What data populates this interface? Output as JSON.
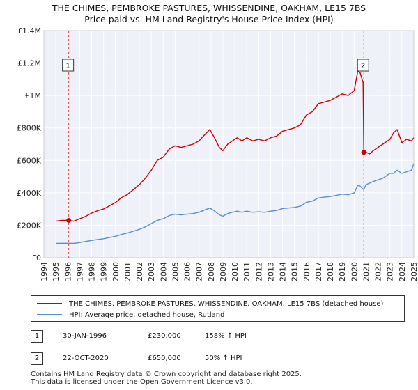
{
  "chart_data": {
    "type": "line",
    "title": "THE CHIMES, PEMBROKE PASTURES, WHISSENDINE, OAKHAM, LE15 7BS",
    "subtitle": "Price paid vs. HM Land Registry's House Price Index (HPI)",
    "xlabel": "",
    "ylabel": "",
    "xlim": [
      1994,
      2025
    ],
    "ylim": [
      0,
      1400000
    ],
    "y_ticks": [
      0,
      200000,
      400000,
      600000,
      800000,
      1000000,
      1200000,
      1400000
    ],
    "y_tick_labels": [
      "£0",
      "£200K",
      "£400K",
      "£600K",
      "£800K",
      "£1M",
      "£1.2M",
      "£1.4M"
    ],
    "x_ticks": [
      1994,
      1995,
      1996,
      1997,
      1998,
      1999,
      2000,
      2001,
      2002,
      2003,
      2004,
      2005,
      2006,
      2007,
      2008,
      2009,
      2010,
      2011,
      2012,
      2013,
      2014,
      2015,
      2016,
      2017,
      2018,
      2019,
      2020,
      2021,
      2022,
      2023,
      2024,
      2025
    ],
    "x_tick_labels": [
      "1994",
      "1995",
      "1996",
      "1997",
      "1998",
      "1999",
      "2000",
      "2001",
      "2002",
      "2003",
      "2004",
      "2005",
      "2006",
      "2007",
      "2008",
      "2009",
      "2010",
      "2011",
      "2012",
      "2013",
      "2014",
      "2015",
      "2016",
      "2017",
      "2018",
      "2019",
      "2020",
      "2021",
      "2022",
      "2023",
      "2024",
      "2025"
    ],
    "grid": true,
    "series": [
      {
        "name": "THE CHIMES, PEMBROKE PASTURES, WHISSENDINE, OAKHAM, LE15 7BS (detached house)",
        "color": "#cc0000",
        "x": [
          1995.0,
          1995.5,
          1996.08,
          1996.5,
          1997.0,
          1997.5,
          1998.0,
          1998.5,
          1999.0,
          1999.5,
          2000.0,
          2000.5,
          2001.0,
          2001.5,
          2002.0,
          2002.5,
          2003.0,
          2003.5,
          2004.0,
          2004.5,
          2005.0,
          2005.5,
          2006.0,
          2006.5,
          2007.0,
          2007.5,
          2007.9,
          2008.3,
          2008.7,
          2009.0,
          2009.4,
          2009.8,
          2010.2,
          2010.6,
          2011.0,
          2011.5,
          2012.0,
          2012.5,
          2013.0,
          2013.5,
          2014.0,
          2014.5,
          2015.0,
          2015.5,
          2016.0,
          2016.5,
          2017.0,
          2017.5,
          2018.0,
          2018.5,
          2019.0,
          2019.5,
          2020.0,
          2020.3,
          2020.5,
          2020.75,
          2020.81,
          2021.0,
          2021.3,
          2021.6,
          2022.0,
          2022.4,
          2022.8,
          2023.0,
          2023.3,
          2023.6,
          2024.0,
          2024.4,
          2024.8,
          2025.0
        ],
        "values": [
          225000,
          230000,
          230000,
          225000,
          240000,
          255000,
          275000,
          290000,
          300000,
          320000,
          340000,
          370000,
          390000,
          420000,
          450000,
          490000,
          540000,
          600000,
          620000,
          670000,
          690000,
          680000,
          690000,
          700000,
          720000,
          760000,
          790000,
          740000,
          680000,
          660000,
          700000,
          720000,
          740000,
          720000,
          740000,
          720000,
          730000,
          720000,
          740000,
          750000,
          780000,
          790000,
          800000,
          820000,
          880000,
          900000,
          950000,
          960000,
          970000,
          990000,
          1010000,
          1000000,
          1030000,
          1150000,
          1140000,
          1080000,
          650000,
          650000,
          640000,
          660000,
          680000,
          700000,
          720000,
          730000,
          770000,
          790000,
          710000,
          730000,
          720000,
          740000
        ]
      },
      {
        "name": "HPI: Average price, detached house, Rutland",
        "color": "#5b8fc9",
        "x": [
          1995.0,
          1995.5,
          1996.0,
          1996.5,
          1997.0,
          1997.5,
          1998.0,
          1998.5,
          1999.0,
          1999.5,
          2000.0,
          2000.5,
          2001.0,
          2001.5,
          2002.0,
          2002.5,
          2003.0,
          2003.5,
          2004.0,
          2004.5,
          2005.0,
          2005.5,
          2006.0,
          2006.5,
          2007.0,
          2007.5,
          2007.9,
          2008.3,
          2008.7,
          2009.0,
          2009.4,
          2009.8,
          2010.2,
          2010.6,
          2011.0,
          2011.5,
          2012.0,
          2012.5,
          2013.0,
          2013.5,
          2014.0,
          2014.5,
          2015.0,
          2015.5,
          2016.0,
          2016.5,
          2017.0,
          2017.5,
          2018.0,
          2018.5,
          2019.0,
          2019.5,
          2020.0,
          2020.3,
          2020.5,
          2020.8,
          2021.0,
          2021.3,
          2021.6,
          2022.0,
          2022.4,
          2022.8,
          2023.0,
          2023.3,
          2023.6,
          2024.0,
          2024.4,
          2024.8,
          2025.0
        ],
        "values": [
          88000,
          89000,
          89000,
          88000,
          93000,
          100000,
          106000,
          112000,
          117000,
          124000,
          132000,
          143000,
          152000,
          163000,
          175000,
          190000,
          210000,
          230000,
          240000,
          260000,
          268000,
          264000,
          268000,
          272000,
          280000,
          295000,
          306000,
          288000,
          264000,
          256000,
          272000,
          280000,
          287000,
          280000,
          287000,
          280000,
          283000,
          280000,
          287000,
          291000,
          303000,
          306000,
          310000,
          318000,
          342000,
          349000,
          368000,
          373000,
          377000,
          384000,
          392000,
          388000,
          400000,
          446000,
          442000,
          420000,
          450000,
          460000,
          470000,
          480000,
          490000,
          510000,
          520000,
          520000,
          540000,
          520000,
          530000,
          540000,
          580000
        ]
      }
    ],
    "annotations": [
      {
        "label": "1",
        "x": 1996.08,
        "value": 230000
      },
      {
        "label": "2",
        "x": 2020.81,
        "value": 650000
      }
    ]
  },
  "legend": {
    "items": [
      {
        "label": "THE CHIMES, PEMBROKE PASTURES, WHISSENDINE, OAKHAM, LE15 7BS (detached house)",
        "color": "#cc0000"
      },
      {
        "label": "HPI: Average price, detached house, Rutland",
        "color": "#5b8fc9"
      }
    ]
  },
  "sales": [
    {
      "num": "1",
      "date": "30-JAN-1996",
      "price": "£230,000",
      "hpi": "158% ↑ HPI"
    },
    {
      "num": "2",
      "date": "22-OCT-2020",
      "price": "£650,000",
      "hpi": "50% ↑ HPI"
    }
  ],
  "footer": {
    "line1": "Contains HM Land Registry data © Crown copyright and database right 2025.",
    "line2": "This data is licensed under the Open Government Licence v3.0."
  }
}
